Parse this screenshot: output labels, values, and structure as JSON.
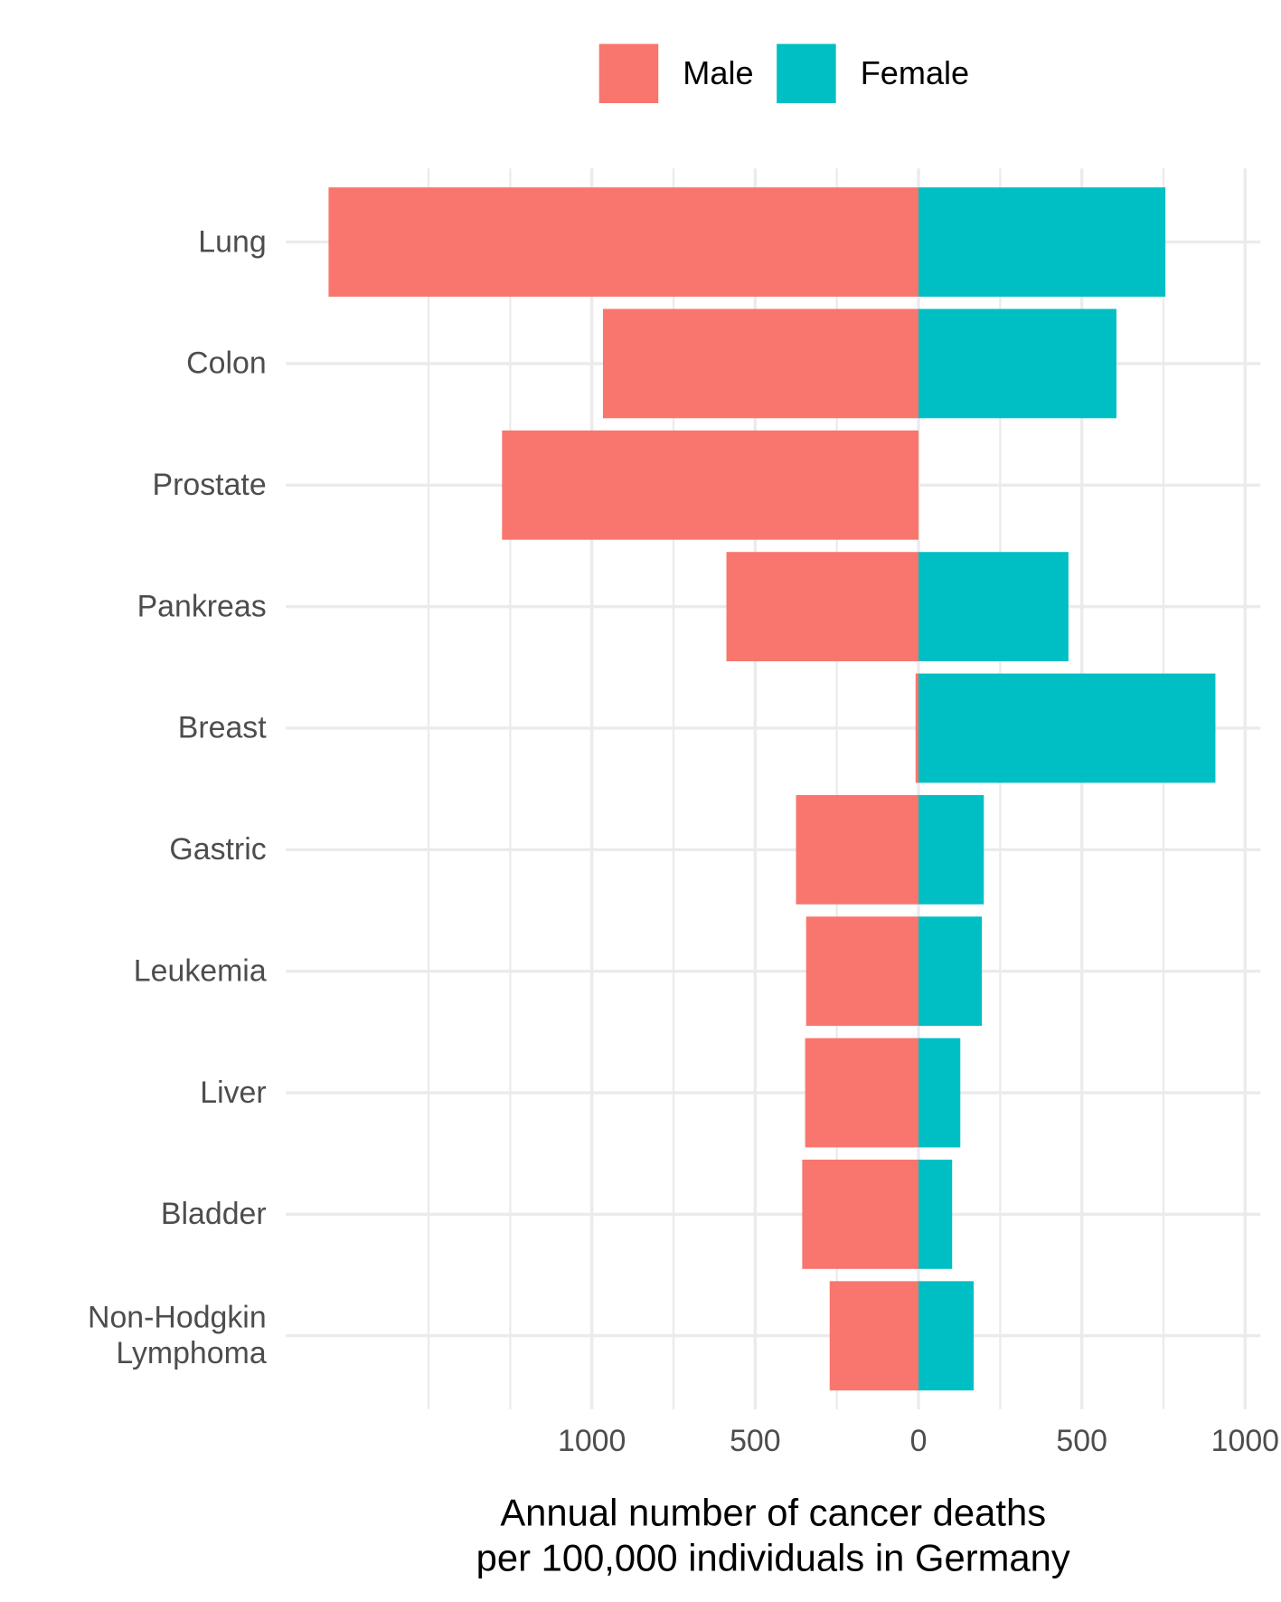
{
  "chart_data": {
    "type": "diverging-bar",
    "categories": [
      "Lung",
      "Colon",
      "Prostate",
      "Pankreas",
      "Breast",
      "Gastric",
      "Leukemia",
      "Liver",
      "Bladder",
      "Non-Hodgkin\nLymphoma"
    ],
    "series": [
      {
        "name": "Male",
        "color": "#f8766d",
        "values": [
          -1806,
          -966,
          -1275,
          -588,
          -9,
          -375,
          -344,
          -347,
          -356,
          -272
        ]
      },
      {
        "name": "Female",
        "color": "#00bfc4",
        "values": [
          756,
          606,
          0,
          459,
          909,
          200,
          194,
          128,
          103,
          169
        ]
      }
    ],
    "xlim": [
      -1937,
      1047
    ],
    "xticks": [
      {
        "value": -1000,
        "label": "1000"
      },
      {
        "value": -500,
        "label": "500"
      },
      0,
      500,
      1000
    ],
    "xgrid_minor": [
      -1500,
      -1250,
      -750,
      -250,
      250,
      750
    ],
    "xlabel": "Annual number of cancer deaths\nper 100,000 individuals in Germany",
    "grid": true,
    "legend": "top"
  }
}
